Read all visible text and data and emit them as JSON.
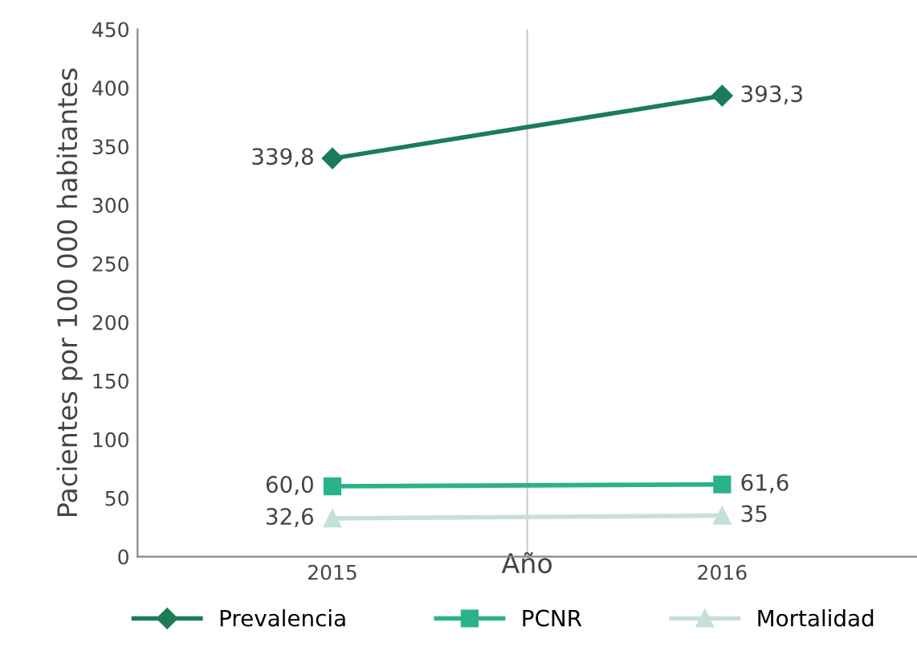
{
  "chart_data": {
    "type": "line",
    "xlabel": "Año",
    "ylabel": "Pacientes por 100 000 habitantes",
    "categories": [
      "2015",
      "2016"
    ],
    "series": [
      {
        "name": "Prevalencia",
        "color": "#1a7d58",
        "marker": "diamond",
        "values": [
          339.8,
          393.3
        ],
        "value_labels": [
          "339,8",
          "393,3"
        ]
      },
      {
        "name": "PCNR",
        "color": "#2ab38b",
        "marker": "square",
        "values": [
          60.0,
          61.6
        ],
        "value_labels": [
          "60,0",
          "61,6"
        ]
      },
      {
        "name": "Mortalidad",
        "color": "#c4e1d4",
        "marker": "triangle",
        "values": [
          32.6,
          35
        ],
        "value_labels": [
          "32,6",
          "35"
        ]
      }
    ],
    "ylim": [
      0,
      450
    ],
    "yticks": [
      0,
      50,
      100,
      150,
      200,
      250,
      300,
      350,
      400,
      450
    ],
    "grid": "x",
    "legend": "bottom"
  }
}
